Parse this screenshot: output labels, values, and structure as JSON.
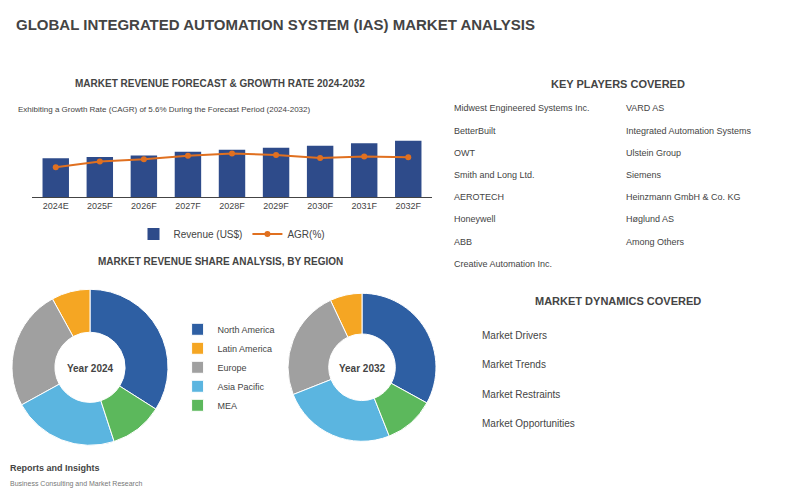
{
  "title": "GLOBAL INTEGRATED AUTOMATION SYSTEM (IAS) MARKET ANALYSIS",
  "chart_data": [
    {
      "type": "bar",
      "title": "MARKET REVENUE FORECAST & GROWTH RATE 2024-2032",
      "subtitle": "Exhibiting a Growth Rate (CAGR) of 5.6% During the Forecast Period (2024-2032)",
      "categories": [
        "2024E",
        "2025F",
        "2026F",
        "2027F",
        "2028F",
        "2029F",
        "2030F",
        "2031F",
        "2032F"
      ],
      "series": [
        {
          "name": "Revenue (US$)",
          "type": "bar",
          "color": "#2e4b8a",
          "values": [
            3.0,
            3.1,
            3.2,
            3.5,
            3.65,
            3.8,
            3.95,
            4.15,
            4.35
          ]
        },
        {
          "name": "AGR(%)",
          "type": "line",
          "color": "#e07020",
          "marker": "circle",
          "axis": "y2",
          "values": [
            4.2,
            5.0,
            5.3,
            5.8,
            6.1,
            5.9,
            5.5,
            5.7,
            5.6
          ]
        }
      ],
      "ylim": [
        0,
        5.5
      ],
      "y2lim": [
        0,
        10
      ],
      "tick_labels": "x",
      "grid": false,
      "legend": "bottom"
    },
    {
      "type": "pie",
      "title": "MARKET REVENUE SHARE ANALYSIS, BY REGION",
      "categories": [
        "North America",
        "Latin America",
        "Europe",
        "Asia Pacific",
        "MEA"
      ],
      "colors": [
        "#2e5fa3",
        "#f5a623",
        "#a0a0a0",
        "#5bb5e0",
        "#5cb85c"
      ],
      "series": [
        {
          "name": "Year 2024",
          "values": [
            34,
            8,
            25,
            22,
            11
          ]
        },
        {
          "name": "Year 2032",
          "values": [
            33,
            7,
            24,
            25,
            11
          ]
        }
      ],
      "legend": "center"
    },
    {
      "type": "text",
      "title": "KEY PLAYERS COVERED",
      "annotations": [
        "Midwest Engineered Systems Inc.",
        "BetterBuilt",
        "OWT",
        "Smith and Long Ltd.",
        "AEROTECH",
        "Honeywell",
        "ABB",
        "Creative Automation Inc.",
        "VARD AS",
        "Integrated Automation Systems",
        "Ulstein Group",
        "Siemens",
        "Heinzmann GmbH & Co. KG",
        "Høglund AS",
        "Among Others"
      ]
    },
    {
      "type": "text",
      "title": "MARKET DYNAMICS COVERED",
      "annotations": [
        "Market Drivers",
        "Market Trends",
        "Market Restraints",
        "Market Opportunities"
      ]
    },
    {
      "type": "text",
      "annotations": [
        "Reports and Insights",
        "Business Consulting and Market Research"
      ]
    }
  ]
}
